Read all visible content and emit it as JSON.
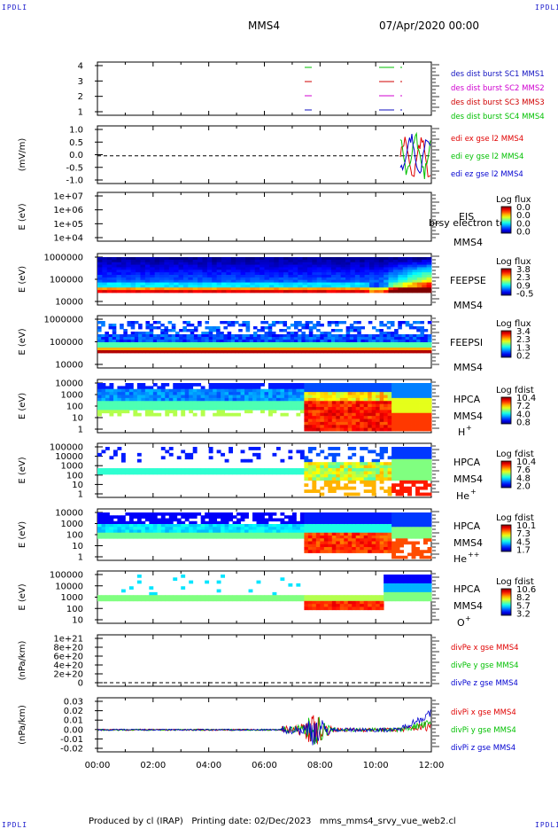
{
  "header": {
    "corner_label": "IPDLI",
    "spacecraft": "MMS4",
    "date_time": "07/Apr/2020 00:00"
  },
  "footer": {
    "produced_by": "Produced by cl (IRAP)",
    "printing_date": "Printing date: 02/Dec/2023",
    "filename": "mms_mms4_srvy_vue_web2.cl"
  },
  "colors": {
    "mms1": "#1010c0",
    "mms2": "#d000d0",
    "mms3": "#d00000",
    "mms4": "#00c000",
    "x": "#e00000",
    "y": "#00c000",
    "z": "#0000d0"
  },
  "chart_data": [
    {
      "id": "burst",
      "type": "line",
      "yticks": [
        "4",
        "3",
        "2",
        "1"
      ],
      "legend": [
        "des dist burst SC1 MMS1",
        "des dist burst SC2 MMS2",
        "des dist burst SC3 MMS3",
        "des dist burst SC4 MMS4"
      ],
      "legend_colors": [
        "#1010c0",
        "#d000d0",
        "#d00000",
        "#00c000"
      ]
    },
    {
      "id": "efield",
      "type": "line",
      "ylabel": "(mV/m)",
      "yticks": [
        "1.0",
        "0.5",
        "0.0",
        "-0.5",
        "-1.0"
      ],
      "ylim": [
        -1.2,
        1.3
      ],
      "legend": [
        "edi ex gse l2 MMS4",
        "edi ey gse l2 MMS4",
        "edi ez gse l2 MMS4"
      ],
      "legend_colors": [
        "#e00000",
        "#00c000",
        "#0000d0"
      ]
    },
    {
      "id": "eis",
      "type": "heatmap",
      "ylabel": "E (eV)",
      "yticks": [
        "1e+07",
        "1e+06",
        "1e+05",
        "1e+04"
      ],
      "instrument": "EIS",
      "spacecraft": "MMS4",
      "overlay_text": "brsy electron to",
      "cbar_title": "Log flux",
      "cbar_ticks": [
        "0.0",
        "0.0",
        "0.0",
        "0.0"
      ]
    },
    {
      "id": "feepse",
      "type": "heatmap",
      "ylabel": "E (eV)",
      "yticks": [
        "1000000",
        "100000",
        "10000"
      ],
      "instrument": "FEEPSE",
      "spacecraft": "MMS4",
      "cbar_title": "Log flux",
      "cbar_ticks": [
        "3.8",
        "2.3",
        "0.9",
        "-0.5"
      ]
    },
    {
      "id": "feepsi",
      "type": "heatmap",
      "ylabel": "E (eV)",
      "yticks": [
        "1000000",
        "100000",
        "10000"
      ],
      "instrument": "FEEPSI",
      "spacecraft": "MMS4",
      "cbar_title": "Log flux",
      "cbar_ticks": [
        "3.4",
        "2.3",
        "1.3",
        "0.2"
      ]
    },
    {
      "id": "hpca_h",
      "type": "heatmap",
      "ylabel": "E (eV)",
      "yticks": [
        "10000",
        "1000",
        "100",
        "10",
        "1"
      ],
      "instrument": "HPCA",
      "spacecraft": "MMS4",
      "species": "H",
      "charge": "+",
      "cbar_title": "Log fdist",
      "cbar_ticks": [
        "10.4",
        "7.2",
        "4.0",
        "0.8"
      ]
    },
    {
      "id": "hpca_he",
      "type": "heatmap",
      "ylabel": "E (eV)",
      "yticks": [
        "100000",
        "10000",
        "1000",
        "100",
        "10",
        "1"
      ],
      "instrument": "HPCA",
      "spacecraft": "MMS4",
      "species": "He",
      "charge": "+",
      "cbar_title": "Log fdist",
      "cbar_ticks": [
        "10.4",
        "7.6",
        "4.8",
        "2.0"
      ]
    },
    {
      "id": "hpca_hepp",
      "type": "heatmap",
      "ylabel": "E (eV)",
      "yticks": [
        "10000",
        "1000",
        "100",
        "10",
        "1"
      ],
      "instrument": "HPCA",
      "spacecraft": "MMS4",
      "species": "He",
      "charge": "++",
      "cbar_title": "Log fdist",
      "cbar_ticks": [
        "10.1",
        "7.3",
        "4.5",
        "1.7"
      ]
    },
    {
      "id": "hpca_o",
      "type": "heatmap",
      "ylabel": "E (eV)",
      "yticks": [
        "100000",
        "10000",
        "1000",
        "100",
        "10"
      ],
      "instrument": "HPCA",
      "spacecraft": "MMS4",
      "species": "O",
      "charge": "+",
      "cbar_title": "Log fdist",
      "cbar_ticks": [
        "10.6",
        "8.2",
        "5.7",
        "3.2"
      ]
    },
    {
      "id": "divpe",
      "type": "line",
      "ylabel": "(nPa/km)",
      "yticks": [
        "1e+21",
        "8e+20",
        "6e+20",
        "4e+20",
        "2e+20",
        "0"
      ],
      "legend": [
        "divPe x gse MMS4",
        "divPe y gse MMS4",
        "divPe z gse MMS4"
      ],
      "legend_colors": [
        "#e00000",
        "#00c000",
        "#0000d0"
      ]
    },
    {
      "id": "divpi",
      "type": "line",
      "ylabel": "(nPa/km)",
      "yticks": [
        "0.03",
        "0.02",
        "0.01",
        "0.00",
        "-0.01",
        "-0.02"
      ],
      "ylim": [
        -0.022,
        0.032
      ],
      "legend": [
        "divPi x gse MMS4",
        "divPi y gse MMS4",
        "divPi z gse MMS4"
      ],
      "legend_colors": [
        "#e00000",
        "#00c000",
        "#0000d0"
      ]
    }
  ],
  "xaxis": {
    "ticks": [
      "00:00",
      "02:00",
      "04:00",
      "06:00",
      "08:00",
      "10:00",
      "12:00"
    ],
    "range_hours": [
      0,
      12
    ]
  }
}
